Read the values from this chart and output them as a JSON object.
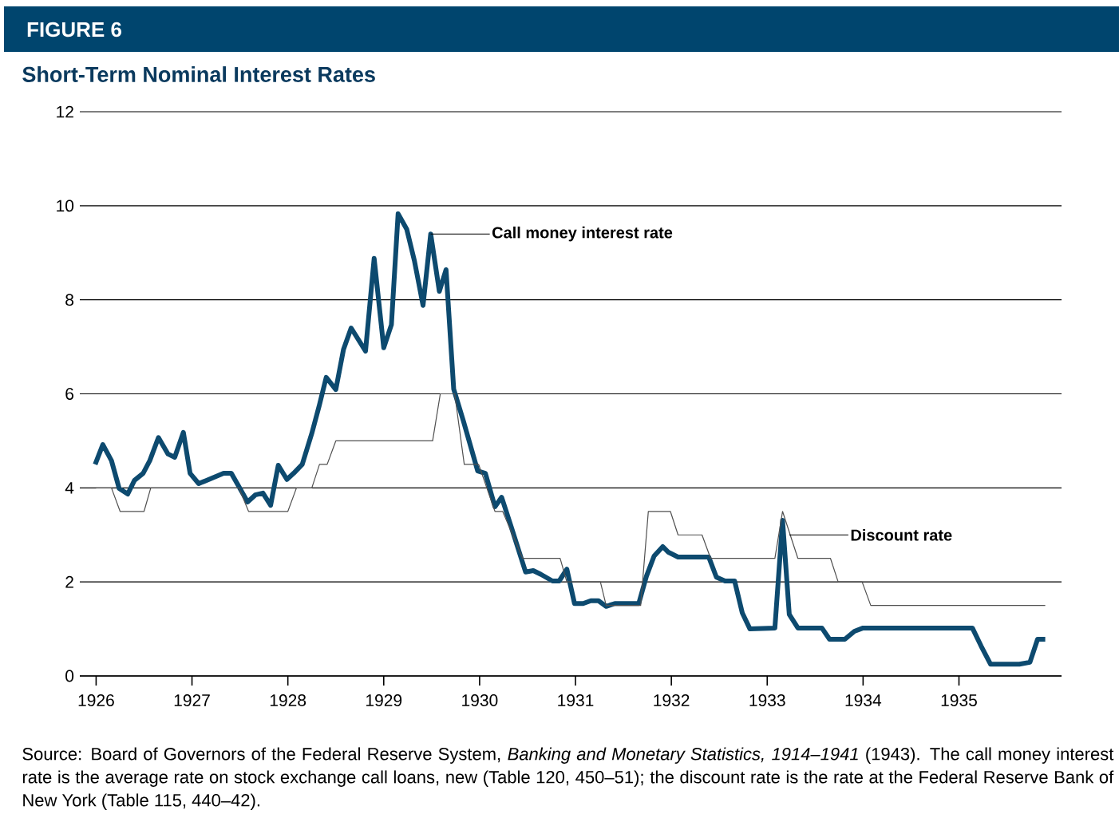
{
  "chart_data": {
    "type": "line",
    "title": "FIGURE 6",
    "subtitle": "Short-Term Nominal Interest Rates",
    "xlim": [
      1925.83,
      1936.07
    ],
    "ylim": [
      0,
      12
    ],
    "xticks": [
      1926,
      1927,
      1928,
      1929,
      1930,
      1931,
      1932,
      1933,
      1934,
      1935
    ],
    "yticks": [
      0,
      2,
      4,
      6,
      8,
      10,
      12
    ],
    "grid": "y",
    "line_style": "solid",
    "series": [
      {
        "color": "#0d4a6f",
        "x": [
          1925.99,
          1926.07,
          1926.16,
          1926.24,
          1926.33,
          1926.4,
          1926.49,
          1926.56,
          1926.65,
          1926.75,
          1926.82,
          1926.91,
          1926.98,
          1927.07,
          1927.33,
          1927.41,
          1927.5,
          1927.58,
          1927.66,
          1927.74,
          1927.82,
          1927.9,
          1927.99,
          1928.06,
          1928.15,
          1928.25,
          1928.33,
          1928.4,
          1928.5,
          1928.58,
          1928.66,
          1928.81,
          1928.9,
          1929.0,
          1929.08,
          1929.15,
          1929.24,
          1929.32,
          1929.41,
          1929.49,
          1929.58,
          1929.65,
          1929.73,
          1929.83,
          1929.98,
          1930.06,
          1930.16,
          1930.23,
          1930.33,
          1930.48,
          1930.56,
          1930.64,
          1930.76,
          1930.83,
          1930.91,
          1930.99,
          1931.08,
          1931.16,
          1931.24,
          1931.32,
          1931.41,
          1931.66,
          1931.74,
          1931.82,
          1931.91,
          1931.97,
          1932.07,
          1932.39,
          1932.47,
          1932.56,
          1932.66,
          1932.74,
          1932.82,
          1933.08,
          1933.16,
          1933.23,
          1933.32,
          1933.57,
          1933.65,
          1933.81,
          1933.91,
          1934.0,
          1935.14,
          1935.23,
          1935.33,
          1935.63,
          1935.74,
          1935.82,
          1935.9
        ],
        "values": [
          4.5,
          4.92,
          4.58,
          3.99,
          3.87,
          4.16,
          4.31,
          4.58,
          5.07,
          4.72,
          4.65,
          5.18,
          4.31,
          4.09,
          4.31,
          4.31,
          3.99,
          3.7,
          3.85,
          3.89,
          3.63,
          4.48,
          4.18,
          4.31,
          4.5,
          5.16,
          5.77,
          6.35,
          6.09,
          6.94,
          7.4,
          6.91,
          8.88,
          6.98,
          7.47,
          9.83,
          9.5,
          8.83,
          7.88,
          9.4,
          8.18,
          8.64,
          6.1,
          5.43,
          4.36,
          4.31,
          3.6,
          3.8,
          3.17,
          2.21,
          2.24,
          2.16,
          2.02,
          2.02,
          2.27,
          1.54,
          1.54,
          1.6,
          1.6,
          1.48,
          1.54,
          1.54,
          2.12,
          2.55,
          2.75,
          2.63,
          2.53,
          2.53,
          2.1,
          2.02,
          2.02,
          1.34,
          1.0,
          1.02,
          3.31,
          1.31,
          1.02,
          1.02,
          0.78,
          0.78,
          0.95,
          1.02,
          1.02,
          0.64,
          0.25,
          0.25,
          0.29,
          0.78,
          0.78
        ]
      },
      {
        "color": "#505050",
        "x": [
          1926.0,
          1926.16,
          1926.25,
          1926.5,
          1926.57,
          1927.49,
          1927.59,
          1928.0,
          1928.09,
          1928.25,
          1928.33,
          1928.41,
          1928.5,
          1929.51,
          1929.59,
          1929.74,
          1929.84,
          1929.99,
          1930.16,
          1930.24,
          1930.45,
          1930.84,
          1930.91,
          1931.26,
          1931.32,
          1931.68,
          1931.76,
          1931.99,
          1932.07,
          1932.32,
          1932.41,
          1933.08,
          1933.16,
          1933.32,
          1933.66,
          1933.74,
          1933.99,
          1934.08,
          1935.9
        ],
        "values": [
          4.0,
          4.0,
          3.5,
          3.5,
          4.0,
          4.0,
          3.5,
          3.5,
          4.0,
          4.0,
          4.5,
          4.5,
          5.0,
          5.0,
          6.0,
          6.0,
          4.5,
          4.5,
          3.5,
          3.5,
          2.5,
          2.5,
          2.0,
          2.0,
          1.5,
          1.5,
          3.5,
          3.5,
          3.0,
          3.0,
          2.5,
          2.5,
          3.5,
          2.5,
          2.5,
          2.0,
          2.0,
          1.5,
          1.5
        ]
      }
    ],
    "annotations": [
      {
        "text": "Call money interest rate",
        "x": 1929.49,
        "y": 9.4
      },
      {
        "text": "Discount rate",
        "x": 1933.23,
        "y": 3.0
      },
      "Source: Board of Governors of the Federal Reserve System, *Banking and Monetary Statistics, 1914–1941* (1943). The call money interest rate is the average rate on stock exchange call loans, new (Table 120, 450–51); the discount rate is the rate at the Federal Reserve Bank of New York (Table 115, 440–42)."
    ]
  }
}
